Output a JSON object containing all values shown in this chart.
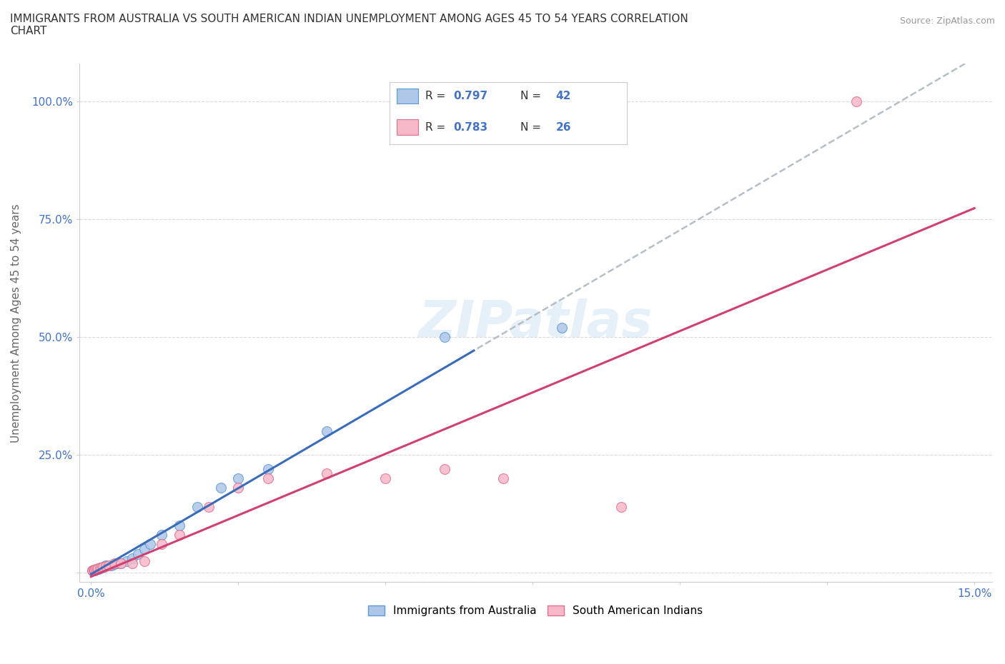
{
  "title": "IMMIGRANTS FROM AUSTRALIA VS SOUTH AMERICAN INDIAN UNEMPLOYMENT AMONG AGES 45 TO 54 YEARS CORRELATION\nCHART",
  "source": "Source: ZipAtlas.com",
  "ylabel": "Unemployment Among Ages 45 to 54 years",
  "xlim": [
    -0.002,
    0.153
  ],
  "ylim": [
    -0.02,
    1.08
  ],
  "xticks": [
    0.0,
    0.025,
    0.05,
    0.075,
    0.1,
    0.125,
    0.15
  ],
  "xticklabels": [
    "0.0%",
    "",
    "",
    "",
    "",
    "",
    "15.0%"
  ],
  "yticks": [
    0.0,
    0.25,
    0.5,
    0.75,
    1.0
  ],
  "yticklabels": [
    "",
    "25.0%",
    "50.0%",
    "75.0%",
    "100.0%"
  ],
  "legend1_R": "0.797",
  "legend1_N": "42",
  "legend2_R": "0.783",
  "legend2_N": "26",
  "legend1_label": "Immigrants from Australia",
  "legend2_label": "South American Indians",
  "color_australia_fill": "#aec6e8",
  "color_australia_edge": "#5b9bd5",
  "color_sai_fill": "#f7b8c8",
  "color_sai_edge": "#e07090",
  "color_line_australia": "#3b6cb7",
  "color_line_sai": "#d04070",
  "color_trend_gray": "#b0b8c0",
  "background_color": "#ffffff",
  "australia_x": [
    0.0002,
    0.0004,
    0.0005,
    0.0006,
    0.0007,
    0.0008,
    0.0009,
    0.001,
    0.0011,
    0.0012,
    0.0013,
    0.0014,
    0.0015,
    0.0016,
    0.0017,
    0.0018,
    0.0019,
    0.002,
    0.0021,
    0.0022,
    0.0023,
    0.0024,
    0.0025,
    0.003,
    0.0035,
    0.004,
    0.0045,
    0.005,
    0.006,
    0.007,
    0.008,
    0.009,
    0.01,
    0.012,
    0.015,
    0.018,
    0.022,
    0.025,
    0.03,
    0.04,
    0.06,
    0.08
  ],
  "australia_y": [
    0.005,
    0.005,
    0.005,
    0.005,
    0.006,
    0.006,
    0.007,
    0.007,
    0.007,
    0.008,
    0.008,
    0.009,
    0.009,
    0.01,
    0.01,
    0.01,
    0.011,
    0.012,
    0.012,
    0.013,
    0.013,
    0.014,
    0.015,
    0.015,
    0.016,
    0.018,
    0.02,
    0.02,
    0.025,
    0.03,
    0.04,
    0.05,
    0.06,
    0.08,
    0.1,
    0.14,
    0.18,
    0.2,
    0.22,
    0.3,
    0.5,
    0.52
  ],
  "sai_x": [
    0.0002,
    0.0004,
    0.0006,
    0.0008,
    0.001,
    0.0012,
    0.0015,
    0.0018,
    0.002,
    0.0025,
    0.003,
    0.004,
    0.005,
    0.007,
    0.009,
    0.012,
    0.015,
    0.02,
    0.025,
    0.03,
    0.04,
    0.05,
    0.06,
    0.07,
    0.09,
    0.13
  ],
  "sai_y": [
    0.005,
    0.006,
    0.006,
    0.007,
    0.008,
    0.009,
    0.01,
    0.01,
    0.012,
    0.013,
    0.015,
    0.02,
    0.02,
    0.02,
    0.025,
    0.06,
    0.08,
    0.14,
    0.18,
    0.2,
    0.21,
    0.2,
    0.22,
    0.2,
    0.14,
    1.0
  ]
}
